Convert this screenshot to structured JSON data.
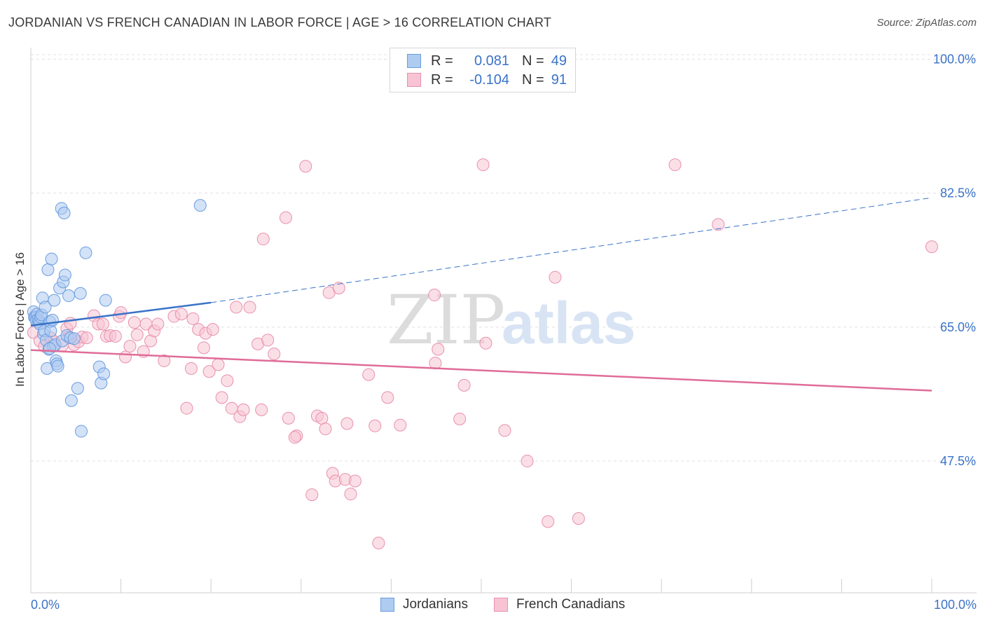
{
  "header": {
    "title": "JORDANIAN VS FRENCH CANADIAN IN LABOR FORCE | AGE > 16 CORRELATION CHART",
    "source": "Source: ZipAtlas.com"
  },
  "watermark": {
    "part1": "ZIP",
    "part2": "atlas"
  },
  "legend": {
    "r_label": "R =",
    "n_label": "N =",
    "series": [
      {
        "name": "Jordanians",
        "r": "0.081",
        "n": "49",
        "fill": "#aecbf0",
        "stroke": "#6a9de0"
      },
      {
        "name": "French Canadians",
        "r": "-0.104",
        "n": "91",
        "fill": "#f8c4d4",
        "stroke": "#e890ae"
      }
    ]
  },
  "chart_data": {
    "type": "scatter",
    "title": "JORDANIAN VS FRENCH CANADIAN IN LABOR FORCE | AGE > 16 CORRELATION CHART",
    "xlabel": "",
    "ylabel": "In Labor Force | Age > 16",
    "xlim": [
      0,
      100
    ],
    "ylim": [
      30.3,
      101.5
    ],
    "x_tick_labels": [
      "0.0%",
      "100.0%"
    ],
    "y_ticks": [
      47.5,
      65.0,
      82.5,
      100.0
    ],
    "y_tick_labels": [
      "47.5%",
      "65.0%",
      "82.5%",
      "100.0%"
    ],
    "grid": true,
    "colors": {
      "blue": "#3a73c8",
      "pink": "#e06c98",
      "grid": "#e1e1e1",
      "axis_text": "#3a73c8"
    },
    "series": [
      {
        "name": "Jordanians",
        "points": [
          [
            0.3,
            67.0
          ],
          [
            0.4,
            66.3
          ],
          [
            0.5,
            66.2
          ],
          [
            0.6,
            65.9
          ],
          [
            0.7,
            66.7
          ],
          [
            0.8,
            66.0
          ],
          [
            0.9,
            65.7
          ],
          [
            1.0,
            65.4
          ],
          [
            1.1,
            66.3
          ],
          [
            1.2,
            66.6
          ],
          [
            1.3,
            68.8
          ],
          [
            1.4,
            64.1
          ],
          [
            1.5,
            64.5
          ],
          [
            1.6,
            67.6
          ],
          [
            1.7,
            63.3
          ],
          [
            1.8,
            59.6
          ],
          [
            1.9,
            72.5
          ],
          [
            2.0,
            62.1
          ],
          [
            2.1,
            65.7
          ],
          [
            2.2,
            64.5
          ],
          [
            2.3,
            73.9
          ],
          [
            2.4,
            65.9
          ],
          [
            2.5,
            62.5
          ],
          [
            2.6,
            68.5
          ],
          [
            2.7,
            62.7
          ],
          [
            2.8,
            60.6
          ],
          [
            2.9,
            60.2
          ],
          [
            3.0,
            59.9
          ],
          [
            3.2,
            70.1
          ],
          [
            3.4,
            80.5
          ],
          [
            3.5,
            63.2
          ],
          [
            3.6,
            70.9
          ],
          [
            3.7,
            79.9
          ],
          [
            3.8,
            71.8
          ],
          [
            4.0,
            63.9
          ],
          [
            4.2,
            69.1
          ],
          [
            4.4,
            63.6
          ],
          [
            4.5,
            55.4
          ],
          [
            4.8,
            63.5
          ],
          [
            5.2,
            57.0
          ],
          [
            5.5,
            69.4
          ],
          [
            5.6,
            51.4
          ],
          [
            6.1,
            74.7
          ],
          [
            7.6,
            59.8
          ],
          [
            7.8,
            57.7
          ],
          [
            8.1,
            58.9
          ],
          [
            8.3,
            68.5
          ],
          [
            18.8,
            80.9
          ],
          [
            2.1,
            62.2
          ]
        ]
      },
      {
        "name": "French Canadians",
        "points": [
          [
            0.3,
            64.3
          ],
          [
            1.0,
            63.2
          ],
          [
            1.5,
            62.5
          ],
          [
            2.2,
            63.6
          ],
          [
            2.6,
            63.1
          ],
          [
            3.5,
            62.6
          ],
          [
            4.0,
            64.8
          ],
          [
            4.2,
            63.7
          ],
          [
            4.4,
            65.5
          ],
          [
            4.8,
            62.7
          ],
          [
            5.3,
            63.1
          ],
          [
            5.7,
            63.7
          ],
          [
            6.2,
            63.6
          ],
          [
            7.0,
            66.5
          ],
          [
            7.5,
            65.4
          ],
          [
            8.0,
            65.4
          ],
          [
            8.4,
            63.8
          ],
          [
            8.8,
            63.9
          ],
          [
            9.4,
            63.8
          ],
          [
            9.8,
            66.4
          ],
          [
            10.0,
            66.9
          ],
          [
            10.5,
            61.1
          ],
          [
            11.0,
            62.5
          ],
          [
            11.5,
            65.6
          ],
          [
            11.8,
            64.0
          ],
          [
            12.8,
            65.4
          ],
          [
            12.5,
            61.8
          ],
          [
            13.3,
            63.2
          ],
          [
            13.7,
            64.5
          ],
          [
            14.1,
            65.4
          ],
          [
            14.8,
            60.6
          ],
          [
            15.9,
            66.4
          ],
          [
            16.7,
            66.7
          ],
          [
            17.3,
            54.4
          ],
          [
            17.8,
            59.6
          ],
          [
            18.0,
            66.1
          ],
          [
            18.6,
            64.7
          ],
          [
            19.2,
            62.3
          ],
          [
            19.4,
            64.2
          ],
          [
            19.8,
            59.2
          ],
          [
            20.2,
            64.7
          ],
          [
            20.8,
            60.1
          ],
          [
            21.2,
            55.8
          ],
          [
            21.8,
            58.0
          ],
          [
            22.3,
            54.4
          ],
          [
            22.8,
            67.6
          ],
          [
            23.2,
            53.3
          ],
          [
            23.6,
            54.2
          ],
          [
            24.3,
            67.6
          ],
          [
            25.2,
            62.8
          ],
          [
            25.6,
            54.2
          ],
          [
            25.8,
            76.5
          ],
          [
            26.3,
            63.3
          ],
          [
            27.0,
            61.5
          ],
          [
            28.3,
            79.3
          ],
          [
            28.6,
            53.1
          ],
          [
            29.5,
            50.8
          ],
          [
            29.3,
            50.6
          ],
          [
            30.5,
            86.0
          ],
          [
            31.2,
            43.1
          ],
          [
            31.8,
            53.4
          ],
          [
            32.3,
            53.1
          ],
          [
            32.7,
            51.7
          ],
          [
            33.1,
            69.5
          ],
          [
            33.5,
            45.9
          ],
          [
            33.8,
            44.9
          ],
          [
            34.2,
            70.1
          ],
          [
            35.1,
            52.4
          ],
          [
            34.9,
            45.1
          ],
          [
            35.5,
            43.2
          ],
          [
            36.0,
            44.9
          ],
          [
            37.5,
            58.8
          ],
          [
            38.2,
            52.1
          ],
          [
            38.6,
            36.8
          ],
          [
            39.6,
            55.8
          ],
          [
            41.0,
            52.2
          ],
          [
            44.8,
            69.2
          ],
          [
            44.9,
            60.3
          ],
          [
            45.2,
            62.1
          ],
          [
            47.6,
            53.0
          ],
          [
            48.1,
            57.4
          ],
          [
            50.2,
            86.2
          ],
          [
            50.5,
            62.9
          ],
          [
            52.6,
            51.5
          ],
          [
            55.1,
            47.5
          ],
          [
            57.4,
            39.6
          ],
          [
            58.2,
            71.5
          ],
          [
            60.8,
            40.0
          ],
          [
            71.5,
            86.2
          ],
          [
            76.3,
            78.4
          ],
          [
            100.0,
            75.5
          ]
        ]
      }
    ],
    "trend_lines": [
      {
        "series": "Jordanians",
        "solid": [
          [
            0,
            65.2
          ],
          [
            20,
            68.2
          ]
        ],
        "dashed": [
          [
            20,
            68.2
          ],
          [
            100,
            81.9
          ]
        ]
      },
      {
        "series": "French Canadians",
        "solid": [
          [
            0,
            62.0
          ],
          [
            100,
            56.7
          ]
        ]
      }
    ]
  }
}
